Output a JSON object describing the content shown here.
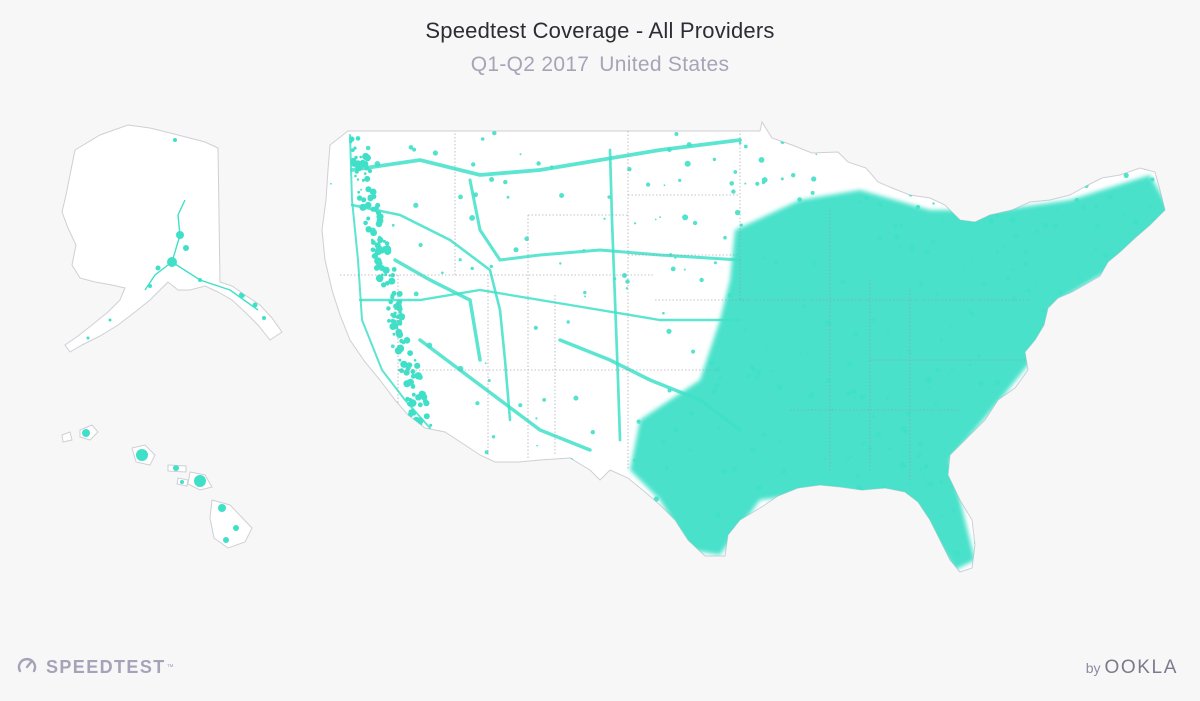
{
  "header": {
    "title": "Speedtest Coverage - All Providers",
    "period": "Q1-Q2 2017",
    "region": "United States"
  },
  "map": {
    "regions": [
      "Contiguous United States",
      "Alaska",
      "Hawaii"
    ],
    "coverage_color": "#40e0c8",
    "land_color": "#ffffff",
    "background_color": "#f7f7f8"
  },
  "footer": {
    "brand": "SPEEDTEST",
    "by": "by",
    "company": "OOKLA"
  }
}
